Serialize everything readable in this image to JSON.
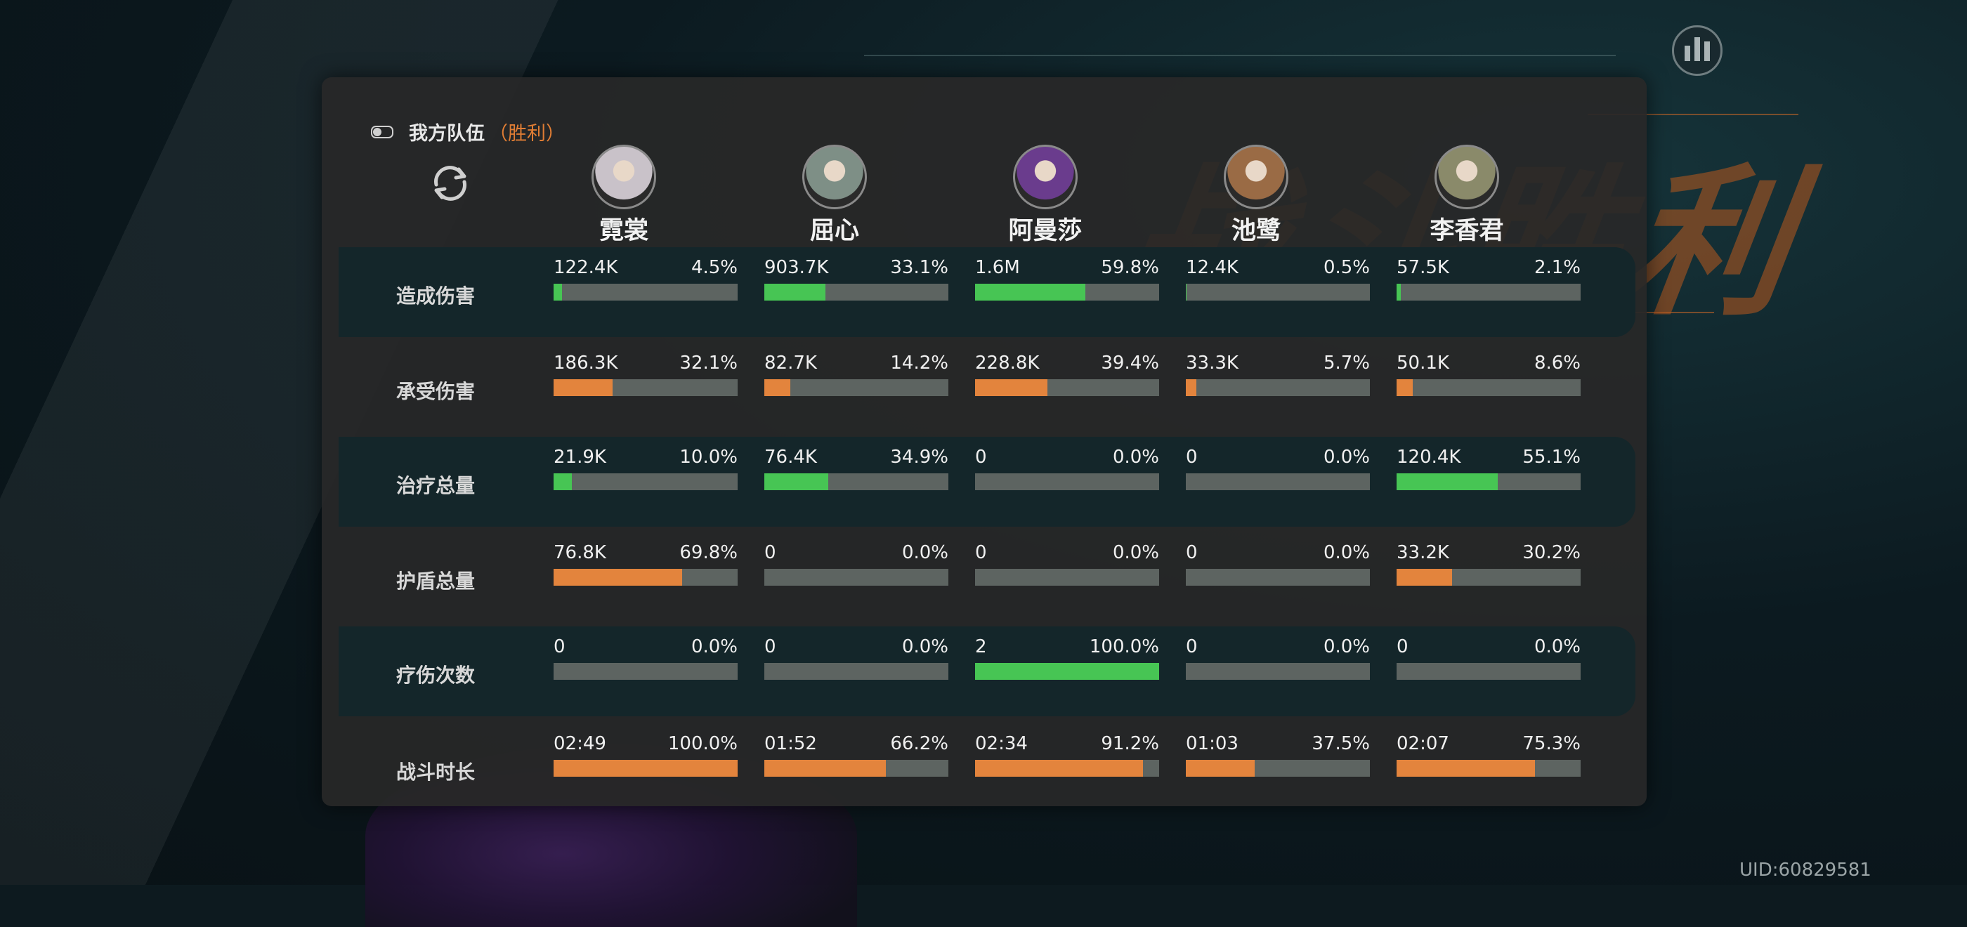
{
  "header": {
    "team_label": "我方队伍",
    "result_label": "（胜利）"
  },
  "background_title": "战斗胜利",
  "uid": "UID:60829581",
  "colors": {
    "accent_orange": "#e3843d",
    "accent_green": "#47c554",
    "bar_track": "#5d6461"
  },
  "heroes": [
    {
      "name": "霓裳",
      "portrait": "#c9c2c9"
    },
    {
      "name": "屈心",
      "portrait": "#7e8f86"
    },
    {
      "name": "阿曼莎",
      "portrait": "#6a3c8d"
    },
    {
      "name": "池鹭",
      "portrait": "#9a6b45"
    },
    {
      "name": "李香君",
      "portrait": "#8a8a6a"
    }
  ],
  "stats": [
    {
      "label": "造成伤害",
      "color": "green",
      "cells": [
        {
          "value": "122.4K",
          "percent": "4.5%",
          "fraction": 0.045
        },
        {
          "value": "903.7K",
          "percent": "33.1%",
          "fraction": 0.331
        },
        {
          "value": "1.6M",
          "percent": "59.8%",
          "fraction": 0.598
        },
        {
          "value": "12.4K",
          "percent": "0.5%",
          "fraction": 0.005
        },
        {
          "value": "57.5K",
          "percent": "2.1%",
          "fraction": 0.021
        }
      ]
    },
    {
      "label": "承受伤害",
      "color": "orange",
      "cells": [
        {
          "value": "186.3K",
          "percent": "32.1%",
          "fraction": 0.321
        },
        {
          "value": "82.7K",
          "percent": "14.2%",
          "fraction": 0.142
        },
        {
          "value": "228.8K",
          "percent": "39.4%",
          "fraction": 0.394
        },
        {
          "value": "33.3K",
          "percent": "5.7%",
          "fraction": 0.057
        },
        {
          "value": "50.1K",
          "percent": "8.6%",
          "fraction": 0.086
        }
      ]
    },
    {
      "label": "治疗总量",
      "color": "green",
      "cells": [
        {
          "value": "21.9K",
          "percent": "10.0%",
          "fraction": 0.1
        },
        {
          "value": "76.4K",
          "percent": "34.9%",
          "fraction": 0.349
        },
        {
          "value": "0",
          "percent": "0.0%",
          "fraction": 0
        },
        {
          "value": "0",
          "percent": "0.0%",
          "fraction": 0
        },
        {
          "value": "120.4K",
          "percent": "55.1%",
          "fraction": 0.551
        }
      ]
    },
    {
      "label": "护盾总量",
      "color": "orange",
      "cells": [
        {
          "value": "76.8K",
          "percent": "69.8%",
          "fraction": 0.698
        },
        {
          "value": "0",
          "percent": "0.0%",
          "fraction": 0
        },
        {
          "value": "0",
          "percent": "0.0%",
          "fraction": 0
        },
        {
          "value": "0",
          "percent": "0.0%",
          "fraction": 0
        },
        {
          "value": "33.2K",
          "percent": "30.2%",
          "fraction": 0.302
        }
      ]
    },
    {
      "label": "疗伤次数",
      "color": "green",
      "cells": [
        {
          "value": "0",
          "percent": "0.0%",
          "fraction": 0
        },
        {
          "value": "0",
          "percent": "0.0%",
          "fraction": 0
        },
        {
          "value": "2",
          "percent": "100.0%",
          "fraction": 1.0
        },
        {
          "value": "0",
          "percent": "0.0%",
          "fraction": 0
        },
        {
          "value": "0",
          "percent": "0.0%",
          "fraction": 0
        }
      ]
    },
    {
      "label": "战斗时长",
      "color": "orange",
      "cells": [
        {
          "value": "02:49",
          "percent": "100.0%",
          "fraction": 1.0
        },
        {
          "value": "01:52",
          "percent": "66.2%",
          "fraction": 0.662
        },
        {
          "value": "02:34",
          "percent": "91.2%",
          "fraction": 0.912
        },
        {
          "value": "01:03",
          "percent": "37.5%",
          "fraction": 0.375
        },
        {
          "value": "02:07",
          "percent": "75.3%",
          "fraction": 0.753
        }
      ]
    }
  ]
}
